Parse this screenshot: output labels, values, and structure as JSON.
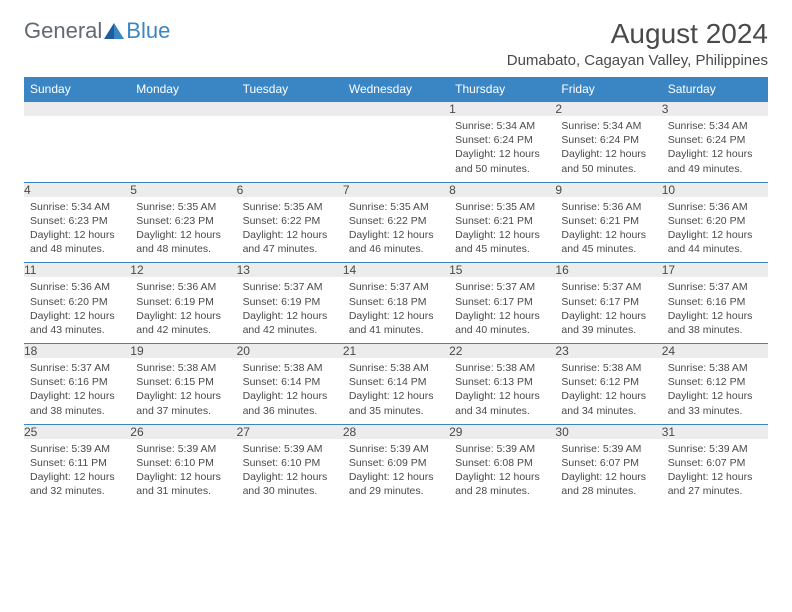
{
  "logo": {
    "text1": "General",
    "text2": "Blue"
  },
  "title": "August 2024",
  "location": "Dumabato, Cagayan Valley, Philippines",
  "colors": {
    "header_bg": "#3a86c4",
    "header_text": "#ffffff",
    "daynum_bg": "#ececec",
    "text": "#4a4a4a",
    "grid_line": "#3a86c4"
  },
  "day_headers": [
    "Sunday",
    "Monday",
    "Tuesday",
    "Wednesday",
    "Thursday",
    "Friday",
    "Saturday"
  ],
  "weeks": [
    [
      null,
      null,
      null,
      null,
      {
        "n": "1",
        "sr": "5:34 AM",
        "ss": "6:24 PM",
        "dl": "12 hours and 50 minutes."
      },
      {
        "n": "2",
        "sr": "5:34 AM",
        "ss": "6:24 PM",
        "dl": "12 hours and 50 minutes."
      },
      {
        "n": "3",
        "sr": "5:34 AM",
        "ss": "6:24 PM",
        "dl": "12 hours and 49 minutes."
      }
    ],
    [
      {
        "n": "4",
        "sr": "5:34 AM",
        "ss": "6:23 PM",
        "dl": "12 hours and 48 minutes."
      },
      {
        "n": "5",
        "sr": "5:35 AM",
        "ss": "6:23 PM",
        "dl": "12 hours and 48 minutes."
      },
      {
        "n": "6",
        "sr": "5:35 AM",
        "ss": "6:22 PM",
        "dl": "12 hours and 47 minutes."
      },
      {
        "n": "7",
        "sr": "5:35 AM",
        "ss": "6:22 PM",
        "dl": "12 hours and 46 minutes."
      },
      {
        "n": "8",
        "sr": "5:35 AM",
        "ss": "6:21 PM",
        "dl": "12 hours and 45 minutes."
      },
      {
        "n": "9",
        "sr": "5:36 AM",
        "ss": "6:21 PM",
        "dl": "12 hours and 45 minutes."
      },
      {
        "n": "10",
        "sr": "5:36 AM",
        "ss": "6:20 PM",
        "dl": "12 hours and 44 minutes."
      }
    ],
    [
      {
        "n": "11",
        "sr": "5:36 AM",
        "ss": "6:20 PM",
        "dl": "12 hours and 43 minutes."
      },
      {
        "n": "12",
        "sr": "5:36 AM",
        "ss": "6:19 PM",
        "dl": "12 hours and 42 minutes."
      },
      {
        "n": "13",
        "sr": "5:37 AM",
        "ss": "6:19 PM",
        "dl": "12 hours and 42 minutes."
      },
      {
        "n": "14",
        "sr": "5:37 AM",
        "ss": "6:18 PM",
        "dl": "12 hours and 41 minutes."
      },
      {
        "n": "15",
        "sr": "5:37 AM",
        "ss": "6:17 PM",
        "dl": "12 hours and 40 minutes."
      },
      {
        "n": "16",
        "sr": "5:37 AM",
        "ss": "6:17 PM",
        "dl": "12 hours and 39 minutes."
      },
      {
        "n": "17",
        "sr": "5:37 AM",
        "ss": "6:16 PM",
        "dl": "12 hours and 38 minutes."
      }
    ],
    [
      {
        "n": "18",
        "sr": "5:37 AM",
        "ss": "6:16 PM",
        "dl": "12 hours and 38 minutes."
      },
      {
        "n": "19",
        "sr": "5:38 AM",
        "ss": "6:15 PM",
        "dl": "12 hours and 37 minutes."
      },
      {
        "n": "20",
        "sr": "5:38 AM",
        "ss": "6:14 PM",
        "dl": "12 hours and 36 minutes."
      },
      {
        "n": "21",
        "sr": "5:38 AM",
        "ss": "6:14 PM",
        "dl": "12 hours and 35 minutes."
      },
      {
        "n": "22",
        "sr": "5:38 AM",
        "ss": "6:13 PM",
        "dl": "12 hours and 34 minutes."
      },
      {
        "n": "23",
        "sr": "5:38 AM",
        "ss": "6:12 PM",
        "dl": "12 hours and 34 minutes."
      },
      {
        "n": "24",
        "sr": "5:38 AM",
        "ss": "6:12 PM",
        "dl": "12 hours and 33 minutes."
      }
    ],
    [
      {
        "n": "25",
        "sr": "5:39 AM",
        "ss": "6:11 PM",
        "dl": "12 hours and 32 minutes."
      },
      {
        "n": "26",
        "sr": "5:39 AM",
        "ss": "6:10 PM",
        "dl": "12 hours and 31 minutes."
      },
      {
        "n": "27",
        "sr": "5:39 AM",
        "ss": "6:10 PM",
        "dl": "12 hours and 30 minutes."
      },
      {
        "n": "28",
        "sr": "5:39 AM",
        "ss": "6:09 PM",
        "dl": "12 hours and 29 minutes."
      },
      {
        "n": "29",
        "sr": "5:39 AM",
        "ss": "6:08 PM",
        "dl": "12 hours and 28 minutes."
      },
      {
        "n": "30",
        "sr": "5:39 AM",
        "ss": "6:07 PM",
        "dl": "12 hours and 28 minutes."
      },
      {
        "n": "31",
        "sr": "5:39 AM",
        "ss": "6:07 PM",
        "dl": "12 hours and 27 minutes."
      }
    ]
  ],
  "labels": {
    "sunrise": "Sunrise:",
    "sunset": "Sunset:",
    "daylight": "Daylight:"
  }
}
